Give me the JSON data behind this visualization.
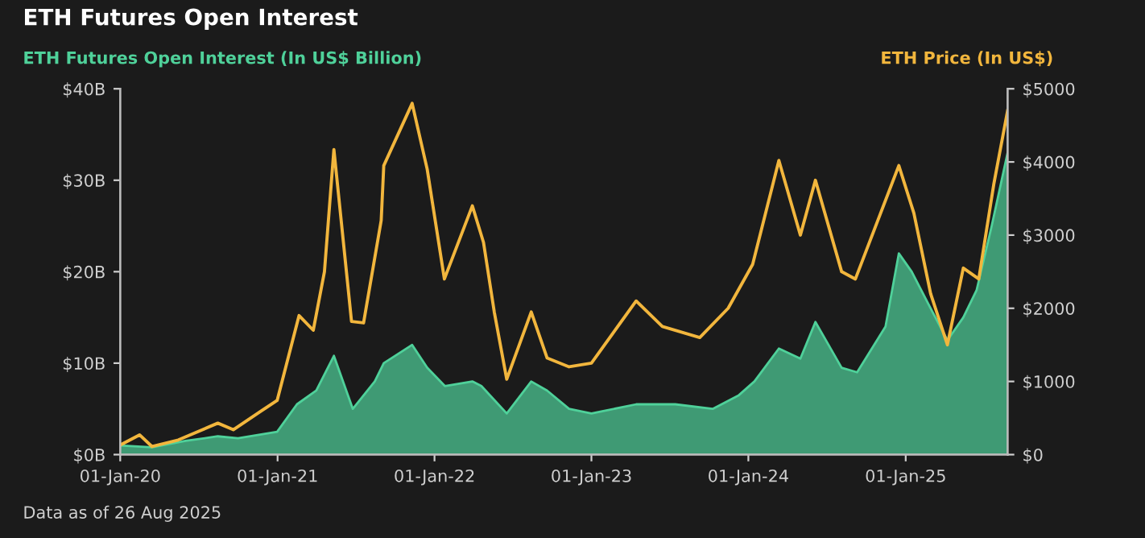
{
  "chart_data": {
    "type": "line",
    "title": "ETH Futures Open Interest",
    "ylabel": "ETH Futures Open Interest (In US$ Billion)",
    "y2label": "ETH Price (In US$)",
    "annotations": [
      "Data as of 26 Aug 2025"
    ],
    "xlim": [
      "2020-01-01",
      "2025-08-26"
    ],
    "xticks": [
      {
        "value": "2020-01-01",
        "label": "01-Jan-20"
      },
      {
        "value": "2021-01-01",
        "label": "01-Jan-21"
      },
      {
        "value": "2022-01-01",
        "label": "01-Jan-22"
      },
      {
        "value": "2023-01-01",
        "label": "01-Jan-23"
      },
      {
        "value": "2024-01-01",
        "label": "01-Jan-24"
      },
      {
        "value": "2025-01-01",
        "label": "01-Jan-25"
      }
    ],
    "ylim": [
      0,
      40
    ],
    "yticks": [
      {
        "value": 0,
        "label": "$0B"
      },
      {
        "value": 10,
        "label": "$10B"
      },
      {
        "value": 20,
        "label": "$20B"
      },
      {
        "value": 30,
        "label": "$30B"
      },
      {
        "value": 40,
        "label": "$40B"
      }
    ],
    "y2lim": [
      0,
      5000
    ],
    "y2ticks": [
      {
        "value": 0,
        "label": "$0"
      },
      {
        "value": 1000,
        "label": "$1000"
      },
      {
        "value": 2000,
        "label": "$2000"
      },
      {
        "value": 3000,
        "label": "$3000"
      },
      {
        "value": 4000,
        "label": "$4000"
      },
      {
        "value": 5000,
        "label": "$5000"
      }
    ],
    "grid": false,
    "legend": false,
    "series": [
      {
        "type": "area",
        "color": "#3f9a74",
        "x": [
          "2020-01-01",
          "2020-03-15",
          "2020-06-01",
          "2020-08-15",
          "2020-10-01",
          "2020-12-31",
          "2021-02-15",
          "2021-04-01",
          "2021-05-12",
          "2021-06-25",
          "2021-08-15",
          "2021-09-05",
          "2021-11-10",
          "2021-12-15",
          "2022-01-25",
          "2022-03-30",
          "2022-04-20",
          "2022-06-18",
          "2022-08-14",
          "2022-09-20",
          "2022-11-10",
          "2023-01-01",
          "2023-04-15",
          "2023-07-15",
          "2023-10-10",
          "2023-12-10",
          "2024-01-15",
          "2024-03-12",
          "2024-05-01",
          "2024-06-05",
          "2024-08-05",
          "2024-09-10",
          "2024-11-15",
          "2024-12-16",
          "2025-01-15",
          "2025-02-28",
          "2025-04-08",
          "2025-05-15",
          "2025-06-15",
          "2025-07-20",
          "2025-08-26"
        ],
        "values": [
          1,
          0.8,
          1.5,
          2,
          1.8,
          2.5,
          5.5,
          7,
          10.8,
          5,
          8,
          10,
          12,
          9.5,
          7.5,
          8,
          7.5,
          4.5,
          8,
          7,
          5,
          4.5,
          5.5,
          5.5,
          5,
          6.5,
          8,
          11.6,
          10.5,
          14.5,
          9.5,
          9,
          14,
          22,
          20,
          16,
          12.5,
          15,
          18,
          25,
          33
        ]
      },
      {
        "axis": "y2",
        "color": "#f2b63d",
        "x": [
          "2020-01-01",
          "2020-02-15",
          "2020-03-15",
          "2020-05-15",
          "2020-08-15",
          "2020-09-20",
          "2020-11-25",
          "2020-12-31",
          "2021-02-20",
          "2021-03-25",
          "2021-04-20",
          "2021-05-12",
          "2021-06-22",
          "2021-07-20",
          "2021-08-30",
          "2021-09-05",
          "2021-11-10",
          "2021-12-15",
          "2022-01-24",
          "2022-03-30",
          "2022-04-25",
          "2022-05-20",
          "2022-06-18",
          "2022-08-14",
          "2022-09-20",
          "2022-11-10",
          "2023-01-01",
          "2023-04-15",
          "2023-06-15",
          "2023-09-10",
          "2023-11-15",
          "2024-01-11",
          "2024-03-12",
          "2024-05-01",
          "2024-06-05",
          "2024-08-05",
          "2024-09-06",
          "2024-12-16",
          "2025-01-20",
          "2025-02-28",
          "2025-04-08",
          "2025-05-15",
          "2025-06-20",
          "2025-07-25",
          "2025-08-26"
        ],
        "values": [
          130,
          270,
          110,
          200,
          430,
          340,
          600,
          740,
          1900,
          1700,
          2500,
          4170,
          1820,
          1800,
          3200,
          3950,
          4800,
          3900,
          2400,
          3400,
          2900,
          1950,
          1030,
          1950,
          1320,
          1200,
          1250,
          2100,
          1750,
          1600,
          2000,
          2600,
          4020,
          3000,
          3750,
          2500,
          2400,
          3950,
          3300,
          2200,
          1500,
          2550,
          2400,
          3700,
          4700
        ]
      }
    ]
  }
}
